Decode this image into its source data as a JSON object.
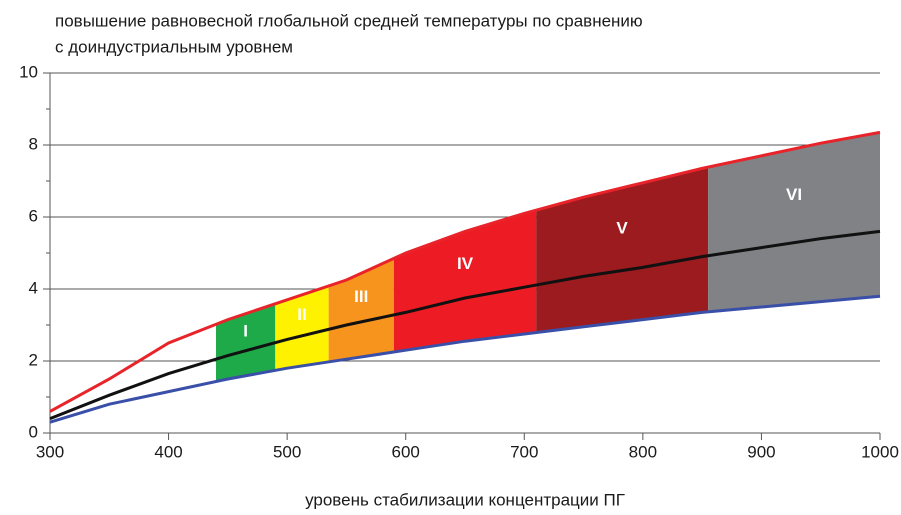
{
  "chart_data": {
    "type": "line",
    "title": "повышение равновесной глобальной средней температуры по сравнению",
    "subtitle": "с доиндустриальным уровнем",
    "x_label": "уровень стабилизации концентрации ПГ",
    "x": [
      300,
      350,
      400,
      450,
      500,
      550,
      600,
      650,
      700,
      750,
      800,
      850,
      900,
      950,
      1000
    ],
    "series": [
      {
        "color": "#e8242a",
        "values": [
          0.6,
          1.5,
          2.5,
          3.15,
          3.7,
          4.25,
          5.0,
          5.6,
          6.1,
          6.55,
          6.95,
          7.35,
          7.7,
          8.05,
          8.35
        ]
      },
      {
        "color": "#111111",
        "values": [
          0.4,
          1.05,
          1.65,
          2.15,
          2.6,
          3.0,
          3.35,
          3.75,
          4.05,
          4.35,
          4.6,
          4.9,
          5.15,
          5.4,
          5.6
        ]
      },
      {
        "color": "#3a4fa8",
        "values": [
          0.3,
          0.8,
          1.15,
          1.5,
          1.8,
          2.05,
          2.3,
          2.55,
          2.75,
          2.95,
          3.15,
          3.35,
          3.5,
          3.65,
          3.8
        ]
      }
    ],
    "bands": [
      {
        "label": "I",
        "color": "#1faa4a",
        "range": [
          440,
          490
        ]
      },
      {
        "label": "II",
        "color": "#fff200",
        "range": [
          490,
          535
        ]
      },
      {
        "label": "III",
        "color": "#f7941d",
        "range": [
          535,
          590
        ]
      },
      {
        "label": "IV",
        "color": "#ed1c24",
        "range": [
          590,
          710
        ]
      },
      {
        "label": "V",
        "color": "#9b1b1f",
        "range": [
          710,
          855
        ]
      },
      {
        "label": "VI",
        "color": "#808285",
        "range": [
          855,
          1000
        ]
      }
    ],
    "xlim": [
      300,
      1000
    ],
    "xticks": [
      300,
      400,
      500,
      600,
      700,
      800,
      900,
      1000
    ],
    "ylim": [
      0,
      10
    ],
    "yticks": [
      0,
      2,
      4,
      6,
      8,
      10
    ],
    "yminor_ticks": [
      1,
      3,
      5,
      7,
      9
    ],
    "grid": true
  }
}
